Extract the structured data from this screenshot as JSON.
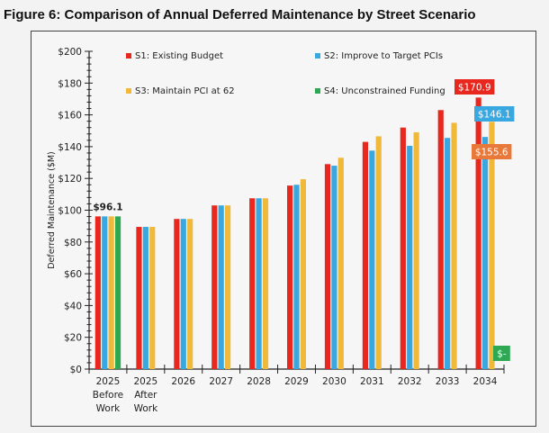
{
  "figure_title": "Figure 6: Comparison of Annual Deferred Maintenance by Street Scenario",
  "chart_data": {
    "type": "bar",
    "title": "Figure 6: Comparison of Annual Deferred Maintenance by Street Scenario",
    "xlabel": "",
    "ylabel": "Deferred Maintenance ($M)",
    "ylim": [
      0,
      200
    ],
    "yticks": [
      "$0",
      "$20",
      "$40",
      "$60",
      "$80",
      "$100",
      "$120",
      "$140",
      "$160",
      "$180",
      "$200"
    ],
    "ytick_values": [
      0,
      20,
      40,
      60,
      80,
      100,
      120,
      140,
      160,
      180,
      200
    ],
    "grid": false,
    "legend_placement": "top",
    "categories": [
      [
        "2025",
        "Before",
        "Work"
      ],
      [
        "2025",
        "After",
        "Work"
      ],
      [
        "2026"
      ],
      [
        "2027"
      ],
      [
        "2028"
      ],
      [
        "2029"
      ],
      [
        "2030"
      ],
      [
        "2031"
      ],
      [
        "2032"
      ],
      [
        "2033"
      ],
      [
        "2034"
      ]
    ],
    "series": [
      {
        "name": "S1: Existing Budget",
        "color": "#e8281e",
        "values": [
          96.1,
          89.5,
          94.5,
          103,
          107.5,
          115.5,
          129,
          143,
          152,
          163,
          170.9
        ]
      },
      {
        "name": "S2: Improve to Target PCIs",
        "color": "#3aa8e0",
        "values": [
          96.1,
          89.5,
          94.5,
          103,
          107.5,
          116,
          128,
          137.5,
          140.5,
          145.5,
          146.1
        ]
      },
      {
        "name": "S3: Maintain PCI at 62",
        "color": "#f0b93a",
        "values": [
          96.1,
          89.5,
          94.5,
          103,
          107.5,
          119.5,
          133,
          146.5,
          149,
          155,
          155.6
        ]
      },
      {
        "name": "S4: Unconstrained Funding",
        "color": "#2ea853",
        "values": [
          96.1,
          null,
          null,
          null,
          null,
          null,
          null,
          null,
          null,
          null,
          0
        ]
      }
    ],
    "annotations": [
      {
        "text": "$96.1",
        "category": 0,
        "style": "plain"
      },
      {
        "text": "$170.9",
        "series": 0,
        "category": 10,
        "bg": "#e8281e"
      },
      {
        "text": "$146.1",
        "series": 1,
        "category": 10,
        "bg": "#3aa8e0"
      },
      {
        "text": "$155.6",
        "series": 2,
        "category": 10,
        "bg": "#e8793a"
      },
      {
        "text": "$-",
        "series": 3,
        "category": 10,
        "bg": "#2ea853"
      }
    ]
  }
}
